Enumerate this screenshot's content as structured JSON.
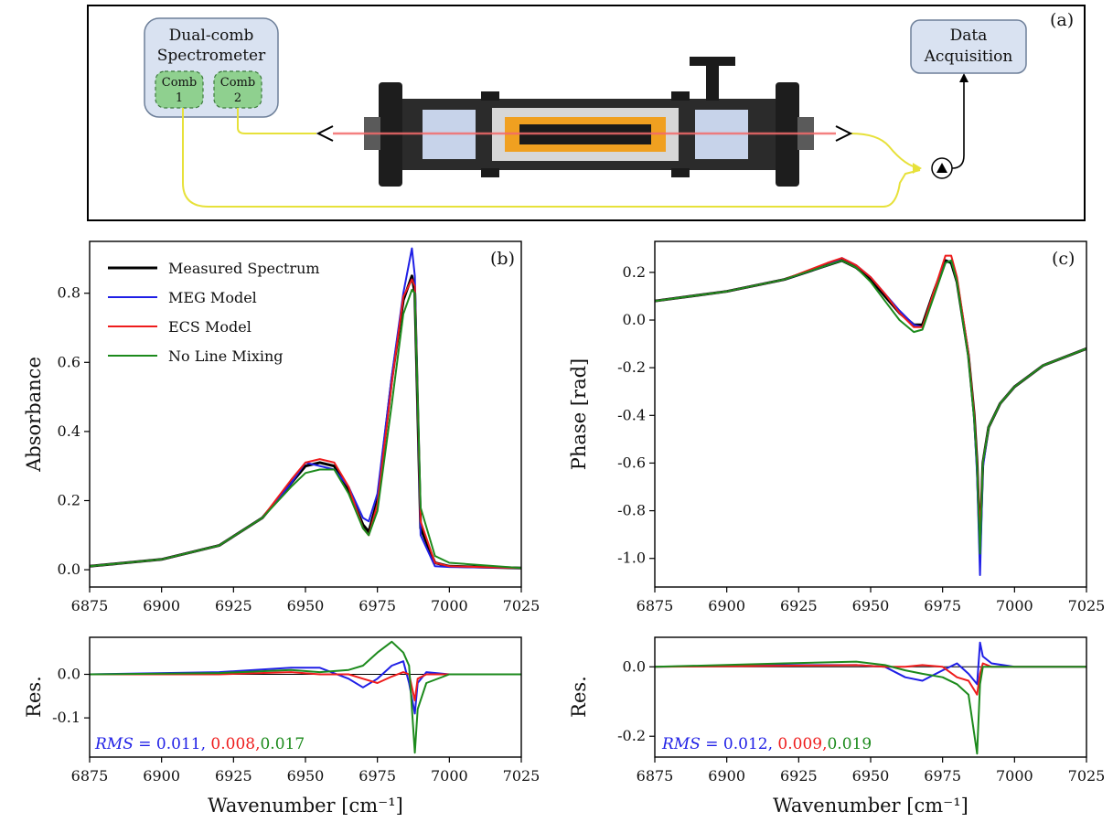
{
  "diagram": {
    "panel_label": "(a)",
    "spectrometer_title_line1": "Dual-comb",
    "spectrometer_title_line2": "Spectrometer",
    "comb1_line1": "Comb",
    "comb1_line2": "1",
    "comb2_line1": "Comb",
    "comb2_line2": "2",
    "daq_line1": "Data",
    "daq_line2": "Acquisition"
  },
  "colors": {
    "measured": "#000000",
    "meg": "#1f1fe6",
    "ecs": "#ee1c1c",
    "noline": "#1c8a1c",
    "beam": "#e7e13a",
    "comb_fill": "#8fd08f",
    "box_fill": "#d9e2f1"
  },
  "chart_data": [
    {
      "id": "b",
      "type": "line",
      "panel_label": "(b)",
      "xlabel": "",
      "ylabel": "Absorbance",
      "xlim": [
        6875,
        7025
      ],
      "ylim": [
        -0.05,
        0.95
      ],
      "xticks": [
        "6875",
        "6900",
        "6925",
        "6950",
        "6975",
        "7000",
        "7025"
      ],
      "yticks": [
        "0.0",
        "0.2",
        "0.4",
        "0.6",
        "0.8"
      ],
      "ytick_values": [
        0.0,
        0.2,
        0.4,
        0.6,
        0.8
      ],
      "legend": {
        "placement": "top-left",
        "entries": [
          "Measured Spectrum",
          "MEG Model",
          "ECS Model",
          "No Line Mixing"
        ]
      },
      "series": [
        {
          "name": "Measured Spectrum",
          "color_key": "measured",
          "x": [
            6875,
            6900,
            6920,
            6935,
            6945,
            6950,
            6955,
            6960,
            6965,
            6970,
            6972,
            6975,
            6980,
            6984,
            6987,
            6988,
            6990,
            6995,
            7000,
            7025
          ],
          "y": [
            0.01,
            0.03,
            0.07,
            0.15,
            0.25,
            0.3,
            0.31,
            0.3,
            0.23,
            0.13,
            0.11,
            0.2,
            0.55,
            0.78,
            0.85,
            0.8,
            0.12,
            0.02,
            0.01,
            0.005
          ]
        },
        {
          "name": "MEG Model",
          "color_key": "meg",
          "x": [
            6875,
            6900,
            6920,
            6935,
            6945,
            6950,
            6955,
            6960,
            6965,
            6970,
            6972,
            6975,
            6980,
            6984,
            6987,
            6988,
            6990,
            6995,
            7000,
            7025
          ],
          "y": [
            0.01,
            0.03,
            0.07,
            0.15,
            0.25,
            0.31,
            0.3,
            0.29,
            0.24,
            0.15,
            0.14,
            0.22,
            0.56,
            0.8,
            0.93,
            0.85,
            0.1,
            0.01,
            0.008,
            0.005
          ]
        },
        {
          "name": "ECS Model",
          "color_key": "ecs",
          "x": [
            6875,
            6900,
            6920,
            6935,
            6945,
            6950,
            6955,
            6960,
            6965,
            6970,
            6972,
            6975,
            6980,
            6984,
            6987,
            6988,
            6990,
            6995,
            7000,
            7025
          ],
          "y": [
            0.01,
            0.03,
            0.07,
            0.15,
            0.26,
            0.31,
            0.32,
            0.31,
            0.24,
            0.12,
            0.1,
            0.19,
            0.54,
            0.79,
            0.84,
            0.82,
            0.14,
            0.02,
            0.01,
            0.005
          ]
        },
        {
          "name": "No Line Mixing",
          "color_key": "noline",
          "x": [
            6875,
            6900,
            6920,
            6935,
            6945,
            6950,
            6955,
            6960,
            6965,
            6970,
            6972,
            6975,
            6980,
            6984,
            6987,
            6988,
            6990,
            6995,
            7000,
            7025
          ],
          "y": [
            0.01,
            0.03,
            0.07,
            0.15,
            0.24,
            0.28,
            0.29,
            0.29,
            0.22,
            0.12,
            0.1,
            0.17,
            0.48,
            0.74,
            0.81,
            0.8,
            0.18,
            0.04,
            0.02,
            0.005
          ]
        }
      ]
    },
    {
      "id": "b_res",
      "type": "line",
      "xlabel": "Wavenumber [cm⁻¹]",
      "ylabel": "Res.",
      "xlim": [
        6875,
        7025
      ],
      "ylim": [
        -0.19,
        0.085
      ],
      "xticks": [
        "6875",
        "6900",
        "6925",
        "6950",
        "6975",
        "7000",
        "7025"
      ],
      "yticks": [
        "0.0",
        "-0.1"
      ],
      "ytick_values": [
        0.0,
        -0.1
      ],
      "rms": {
        "prefix": "RMS",
        "eq": " = ",
        "meg": "0.011,",
        "ecs": " 0.008,",
        "noline": "0.017"
      },
      "series": [
        {
          "name": "MEG Model",
          "color_key": "meg",
          "x": [
            6875,
            6920,
            6945,
            6955,
            6965,
            6970,
            6975,
            6980,
            6984,
            6986,
            6988,
            6989,
            6992,
            7000,
            7025
          ],
          "y": [
            0.0,
            0.005,
            0.015,
            0.015,
            -0.01,
            -0.03,
            -0.01,
            0.02,
            0.03,
            -0.02,
            -0.09,
            -0.02,
            0.005,
            0.0,
            0.0
          ]
        },
        {
          "name": "ECS Model",
          "color_key": "ecs",
          "x": [
            6875,
            6920,
            6945,
            6955,
            6965,
            6970,
            6975,
            6980,
            6984,
            6986,
            6988,
            6989,
            6992,
            7000,
            7025
          ],
          "y": [
            0.0,
            0.0,
            0.005,
            0.0,
            0.0,
            -0.01,
            -0.02,
            -0.005,
            0.005,
            0.0,
            -0.06,
            -0.01,
            0.0,
            0.0,
            0.0
          ]
        },
        {
          "name": "No Line Mixing",
          "color_key": "noline",
          "x": [
            6875,
            6920,
            6945,
            6955,
            6965,
            6970,
            6975,
            6980,
            6984,
            6986,
            6988,
            6989,
            6992,
            7000,
            7025
          ],
          "y": [
            0.0,
            0.003,
            0.01,
            0.005,
            0.01,
            0.02,
            0.05,
            0.075,
            0.05,
            0.02,
            -0.18,
            -0.08,
            -0.02,
            0.0,
            0.0
          ]
        }
      ]
    },
    {
      "id": "c",
      "type": "line",
      "panel_label": "(c)",
      "xlabel": "",
      "ylabel": "Phase [rad]",
      "xlim": [
        6875,
        7025
      ],
      "ylim": [
        -1.12,
        0.33
      ],
      "xticks": [
        "6875",
        "6900",
        "6925",
        "6950",
        "6975",
        "7000",
        "7025"
      ],
      "yticks": [
        "0.2",
        "0.0",
        "-0.2",
        "-0.4",
        "-0.6",
        "-0.8",
        "-1.0"
      ],
      "ytick_values": [
        0.2,
        0.0,
        -0.2,
        -0.4,
        -0.6,
        -0.8,
        -1.0
      ],
      "series": [
        {
          "name": "Measured Spectrum",
          "color_key": "measured",
          "x": [
            6875,
            6900,
            6920,
            6935,
            6940,
            6945,
            6950,
            6955,
            6960,
            6965,
            6968,
            6972,
            6976,
            6978,
            6980,
            6984,
            6986,
            6987,
            6988,
            6989,
            6991,
            6995,
            7000,
            7010,
            7025
          ],
          "y": [
            0.08,
            0.12,
            0.17,
            0.23,
            0.25,
            0.22,
            0.17,
            0.1,
            0.03,
            -0.02,
            -0.02,
            0.12,
            0.25,
            0.24,
            0.16,
            -0.15,
            -0.4,
            -0.6,
            -0.95,
            -0.6,
            -0.45,
            -0.35,
            -0.28,
            -0.19,
            -0.12
          ]
        },
        {
          "name": "MEG Model",
          "color_key": "meg",
          "x": [
            6875,
            6900,
            6920,
            6935,
            6940,
            6945,
            6950,
            6955,
            6960,
            6965,
            6968,
            6972,
            6976,
            6978,
            6980,
            6984,
            6986,
            6987,
            6988,
            6989,
            6991,
            6995,
            7000,
            7010,
            7025
          ],
          "y": [
            0.08,
            0.12,
            0.17,
            0.23,
            0.26,
            0.23,
            0.18,
            0.11,
            0.04,
            -0.02,
            -0.03,
            0.11,
            0.24,
            0.25,
            0.17,
            -0.14,
            -0.42,
            -0.65,
            -1.07,
            -0.62,
            -0.45,
            -0.35,
            -0.28,
            -0.19,
            -0.12
          ]
        },
        {
          "name": "ECS Model",
          "color_key": "ecs",
          "x": [
            6875,
            6900,
            6920,
            6935,
            6940,
            6945,
            6950,
            6955,
            6960,
            6965,
            6968,
            6972,
            6976,
            6978,
            6980,
            6984,
            6986,
            6987,
            6988,
            6989,
            6991,
            6995,
            7000,
            7010,
            7025
          ],
          "y": [
            0.08,
            0.12,
            0.17,
            0.24,
            0.26,
            0.23,
            0.18,
            0.11,
            0.03,
            -0.03,
            -0.03,
            0.12,
            0.27,
            0.27,
            0.18,
            -0.14,
            -0.4,
            -0.6,
            -0.9,
            -0.6,
            -0.45,
            -0.35,
            -0.28,
            -0.19,
            -0.12
          ]
        },
        {
          "name": "No Line Mixing",
          "color_key": "noline",
          "x": [
            6875,
            6900,
            6920,
            6935,
            6940,
            6945,
            6950,
            6955,
            6960,
            6965,
            6968,
            6972,
            6976,
            6978,
            6980,
            6984,
            6986,
            6987,
            6988,
            6989,
            6991,
            6995,
            7000,
            7010,
            7025
          ],
          "y": [
            0.08,
            0.12,
            0.17,
            0.23,
            0.25,
            0.22,
            0.16,
            0.08,
            0.0,
            -0.05,
            -0.04,
            0.1,
            0.24,
            0.25,
            0.16,
            -0.16,
            -0.42,
            -0.62,
            -0.98,
            -0.6,
            -0.45,
            -0.35,
            -0.28,
            -0.19,
            -0.12
          ]
        }
      ]
    },
    {
      "id": "c_res",
      "type": "line",
      "xlabel": "Wavenumber [cm⁻¹]",
      "ylabel": "Res.",
      "xlim": [
        6875,
        7025
      ],
      "ylim": [
        -0.26,
        0.085
      ],
      "xticks": [
        "6875",
        "6900",
        "6925",
        "6950",
        "6975",
        "7000",
        "7025"
      ],
      "yticks": [
        "0.0",
        "-0.2"
      ],
      "ytick_values": [
        0.0,
        -0.2
      ],
      "rms": {
        "prefix": "RMS",
        "eq": " = ",
        "meg": "0.012,",
        "ecs": " 0.009,",
        "noline": "0.019"
      },
      "series": [
        {
          "name": "MEG Model",
          "color_key": "meg",
          "x": [
            6875,
            6920,
            6945,
            6955,
            6962,
            6968,
            6975,
            6980,
            6984,
            6987,
            6988,
            6989,
            6992,
            7000,
            7025
          ],
          "y": [
            0.0,
            0.005,
            0.005,
            0.0,
            -0.03,
            -0.04,
            -0.01,
            0.01,
            -0.02,
            -0.05,
            0.07,
            0.03,
            0.01,
            0.0,
            0.0
          ]
        },
        {
          "name": "ECS Model",
          "color_key": "ecs",
          "x": [
            6875,
            6920,
            6945,
            6955,
            6962,
            6968,
            6975,
            6980,
            6984,
            6987,
            6988,
            6989,
            6992,
            7000,
            7025
          ],
          "y": [
            0.0,
            0.003,
            0.005,
            0.0,
            0.0,
            0.005,
            0.0,
            -0.03,
            -0.04,
            -0.08,
            -0.02,
            0.01,
            0.0,
            0.0,
            0.0
          ]
        },
        {
          "name": "No Line Mixing",
          "color_key": "noline",
          "x": [
            6875,
            6920,
            6945,
            6955,
            6962,
            6968,
            6975,
            6980,
            6984,
            6987,
            6988,
            6989,
            6992,
            7000,
            7025
          ],
          "y": [
            0.0,
            0.01,
            0.015,
            0.005,
            -0.01,
            -0.02,
            -0.03,
            -0.05,
            -0.08,
            -0.25,
            -0.05,
            0.0,
            0.0,
            0.0,
            0.0
          ]
        }
      ]
    }
  ]
}
